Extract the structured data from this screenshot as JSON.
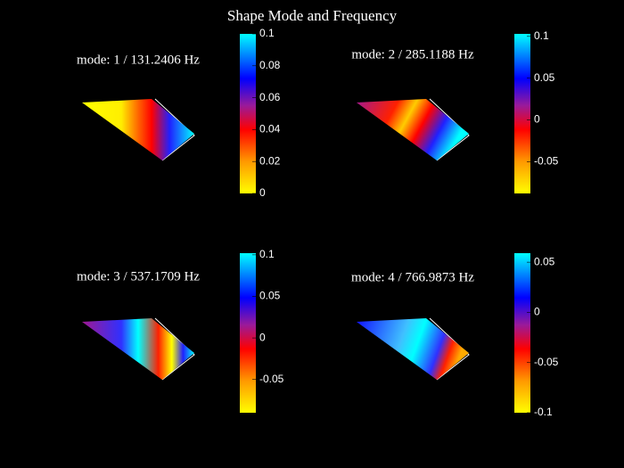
{
  "title": "Shape Mode and Frequency",
  "chart_data": [
    {
      "type": "surface",
      "title": "mode: 1 / 131.2406 Hz",
      "clim": [
        0,
        0.1
      ],
      "cticks": [
        0,
        0.02,
        0.04,
        0.06,
        0.08,
        0.1
      ]
    },
    {
      "type": "surface",
      "title": "mode: 2 / 285.1188 Hz",
      "clim": [
        -0.088,
        0.103
      ],
      "cticks": [
        -0.05,
        0,
        0.05,
        0.1
      ]
    },
    {
      "type": "surface",
      "title": "mode: 3 / 537.1709 Hz",
      "clim": [
        -0.09,
        0.102
      ],
      "cticks": [
        -0.05,
        0,
        0.05,
        0.1
      ]
    },
    {
      "type": "surface",
      "title": "mode: 4 / 766.9873 Hz",
      "clim": [
        -0.1,
        0.059
      ],
      "cticks": [
        -0.1,
        -0.05,
        0,
        0.05
      ]
    }
  ]
}
